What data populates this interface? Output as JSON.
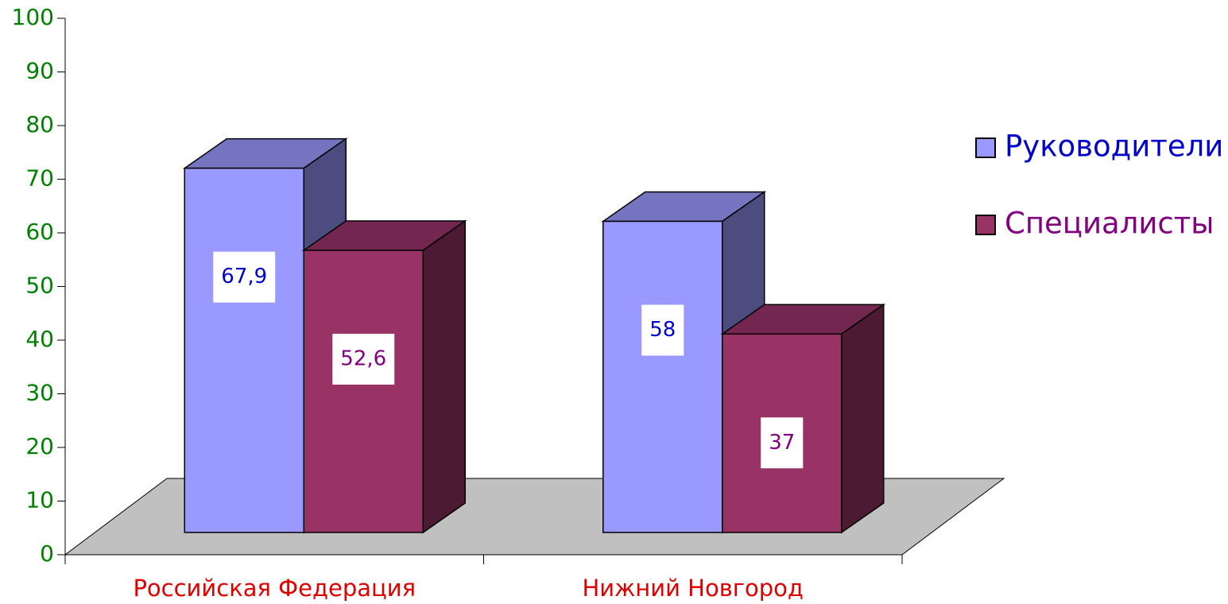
{
  "chart_data": {
    "type": "bar3d",
    "categories": [
      "Российская Федерация",
      "Нижний Новгород"
    ],
    "series": [
      {
        "name": "Руководители",
        "color": "#9999ff",
        "top_color": "#7474c0",
        "side_color": "#4c4c80",
        "label_color": "#0000cc",
        "values": [
          67.9,
          58
        ],
        "value_labels": [
          "67,9",
          "58"
        ]
      },
      {
        "name": "Специалисты",
        "color": "#993366",
        "top_color": "#732650",
        "side_color": "#4c1a33",
        "label_color": "#800080",
        "values": [
          52.6,
          37
        ],
        "value_labels": [
          "52,6",
          "37"
        ]
      }
    ],
    "ylim": [
      0,
      100
    ],
    "yticks": [
      0,
      10,
      20,
      30,
      40,
      50,
      60,
      70,
      80,
      90,
      100
    ],
    "tick_color": "#008000",
    "category_color": "#e00000",
    "legend": "right"
  }
}
